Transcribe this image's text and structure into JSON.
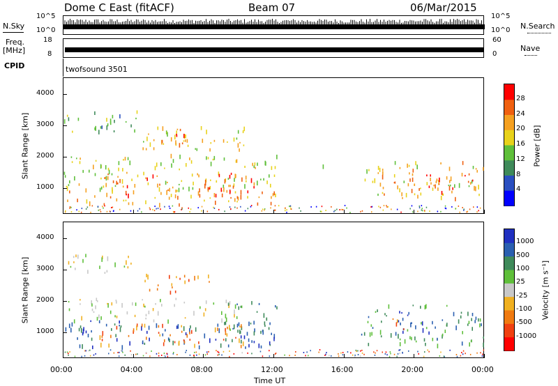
{
  "header": {
    "radar": "Dome C East (fitACF)",
    "beam": "Beam 07",
    "date": "06/Mar/2015"
  },
  "top_panels": {
    "nsky_label": "N.Sky",
    "nsky_ticks": [
      "10^5",
      "10^0"
    ],
    "nsearch_label": "N.Search",
    "nsearch_ticks": [
      "10^5",
      "10^0"
    ],
    "freq_label": "Freq.",
    "freq_unit": "[MHz]",
    "freq_ticks": [
      "18",
      "8"
    ],
    "nave_label": "Nave",
    "nave_ticks": [
      "60",
      "0"
    ],
    "cpid_label": "CPID",
    "cpid_value": "twofsound 3501"
  },
  "colors": {
    "power_scale": [
      "#0000ff",
      "#2a4fc0",
      "#3f8a5a",
      "#5fbf3a",
      "#e8d21a",
      "#f5a020",
      "#f06010",
      "#ff0000"
    ],
    "velocity_scale": [
      "#2030c0",
      "#2a5fb0",
      "#3f8a5a",
      "#5fbf3a",
      "#c8c8c8",
      "#f0b020",
      "#f07a10",
      "#f04010",
      "#ff0000"
    ]
  },
  "chart_data": [
    {
      "type": "heatmap",
      "name": "power",
      "ylabel": "Slant Range [km]",
      "ylim": [
        200,
        4500
      ],
      "xlim": [
        0,
        24
      ],
      "y_ticks": [
        1000,
        2000,
        3000,
        4000
      ],
      "colorbar_label": "Power [dB]",
      "colorbar_ticks": [
        4,
        8,
        12,
        16,
        20,
        24,
        28
      ],
      "colorbar_range": [
        0,
        32
      ],
      "blobs": [
        {
          "t0": 0.0,
          "t1": 12.3,
          "r0": 500,
          "r1": 1000,
          "v": 22
        },
        {
          "t0": 0.0,
          "t1": 12.3,
          "r0": 1000,
          "r1": 2100,
          "v": 17
        },
        {
          "t0": 0.0,
          "t1": 4.3,
          "r0": 2800,
          "r1": 3500,
          "v": 12
        },
        {
          "t0": 4.0,
          "t1": 10.5,
          "r0": 2200,
          "r1": 3000,
          "v": 19
        },
        {
          "t0": 5.2,
          "t1": 7.5,
          "r0": 2400,
          "r1": 2900,
          "v": 27
        },
        {
          "t0": 2.0,
          "t1": 11.0,
          "r0": 800,
          "r1": 1500,
          "v": 26
        },
        {
          "t0": 17.0,
          "t1": 24.0,
          "r0": 700,
          "r1": 1900,
          "v": 20
        },
        {
          "t0": 18.5,
          "t1": 23.5,
          "r0": 900,
          "r1": 1500,
          "v": 27
        },
        {
          "t0": 14.5,
          "t1": 15.0,
          "r0": 1700,
          "r1": 1900,
          "v": 12
        }
      ]
    },
    {
      "type": "heatmap",
      "name": "velocity",
      "ylabel": "Slant Range [km]",
      "xlabel": "Time UT",
      "ylim": [
        200,
        4500
      ],
      "xlim": [
        0,
        24
      ],
      "y_ticks": [
        1000,
        2000,
        3000,
        4000
      ],
      "x_ticks": [
        "00:00",
        "04:00",
        "08:00",
        "12:00",
        "16:00",
        "20:00",
        "00:00"
      ],
      "colorbar_label": "Velocity [m s⁻¹]",
      "colorbar_ticks": [
        "1000",
        "500",
        "100",
        "25",
        "-25",
        "-100",
        "-500",
        "-1000"
      ],
      "blobs": [
        {
          "t0": 0.0,
          "t1": 12.3,
          "r0": 500,
          "r1": 1400,
          "v": 1
        },
        {
          "t0": 2.0,
          "t1": 10.5,
          "r0": 600,
          "r1": 1300,
          "v": 6
        },
        {
          "t0": 0.0,
          "t1": 10.0,
          "r0": 1400,
          "r1": 2100,
          "v": 4
        },
        {
          "t0": 0.0,
          "t1": 4.3,
          "r0": 2900,
          "r1": 3500,
          "v": 4
        },
        {
          "t0": 4.5,
          "t1": 8.5,
          "r0": 2300,
          "r1": 2900,
          "v": 6
        },
        {
          "t0": 9.0,
          "t1": 12.3,
          "r0": 1000,
          "r1": 2000,
          "v": 2
        },
        {
          "t0": 17.0,
          "t1": 24.0,
          "r0": 600,
          "r1": 1900,
          "v": 2
        },
        {
          "t0": 19.0,
          "t1": 21.0,
          "r0": 1000,
          "r1": 1700,
          "v": 0
        },
        {
          "t0": 18.5,
          "t1": 19.5,
          "r0": 1100,
          "r1": 1600,
          "v": 6
        }
      ]
    }
  ]
}
